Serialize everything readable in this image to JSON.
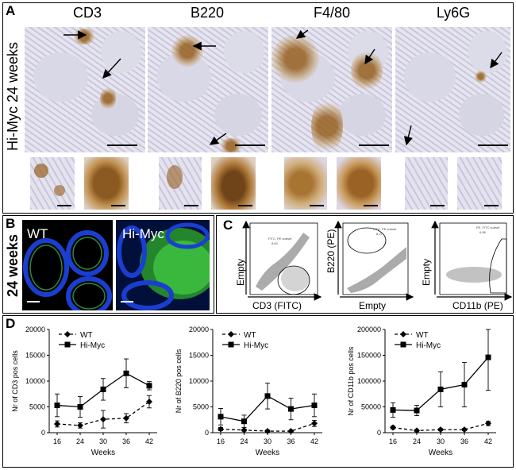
{
  "panel_a": {
    "letter": "A",
    "row_label": "Hi-Myc 24 weeks",
    "stains": [
      "CD3",
      "B220",
      "F4/80",
      "Ly6G"
    ]
  },
  "panel_b": {
    "letter": "B",
    "row_label": "24 weeks",
    "wt_label": "WT",
    "himyc_label": "Hi-Myc"
  },
  "panel_c": {
    "letter": "C",
    "plot1": {
      "ylabel": "Empty",
      "xlabel": "CD3 (FITC)",
      "gate": "FITC, PE subset",
      "gate_value": "8,64"
    },
    "plot2": {
      "ylabel": "B220 (PE)",
      "xlabel": "Empty",
      "gate": "FITC, PE subset",
      "gate_value": "8,27"
    },
    "plot3": {
      "ylabel": "Empty",
      "xlabel": "CD11b (PE)",
      "gate": "PE, FITC subset",
      "gate_value": "6,95"
    }
  },
  "panel_d": {
    "letter": "D",
    "xlabel": "Weeks"
  },
  "colors": {
    "wt": "#000000",
    "himyc": "#000000",
    "brown": "#9a6a2a",
    "dapi": "#1a3fd0",
    "gfp": "#3fd13f"
  },
  "chart_data": [
    {
      "type": "line",
      "ylabel": "Nr of CD3 pos cells",
      "xlabel": "Weeks",
      "x": [
        16,
        24,
        30,
        36,
        42
      ],
      "ylim": [
        0,
        20000
      ],
      "yticks": [
        0,
        5000,
        10000,
        15000,
        20000
      ],
      "series": [
        {
          "name": "WT",
          "values": [
            1700,
            1400,
            2600,
            2800,
            6000
          ],
          "err": [
            600,
            500,
            1700,
            900,
            1200
          ],
          "style": "dashed-diamond"
        },
        {
          "name": "Hi-Myc",
          "values": [
            5300,
            5000,
            8400,
            11500,
            9100
          ],
          "err": [
            2200,
            2000,
            2100,
            2800,
            800
          ],
          "style": "solid-square"
        }
      ]
    },
    {
      "type": "line",
      "ylabel": "Nr of B220 pos cells",
      "xlabel": "Weeks",
      "x": [
        16,
        24,
        30,
        36,
        42
      ],
      "ylim": [
        0,
        20000
      ],
      "yticks": [
        0,
        5000,
        10000,
        15000,
        20000
      ],
      "series": [
        {
          "name": "WT",
          "values": [
            700,
            500,
            300,
            300,
            1800
          ],
          "err": [
            300,
            200,
            200,
            200,
            600
          ],
          "style": "dashed-diamond"
        },
        {
          "name": "Hi-Myc",
          "values": [
            3100,
            2200,
            7100,
            4600,
            5300
          ],
          "err": [
            1600,
            1200,
            2500,
            2100,
            2200
          ],
          "style": "solid-square"
        }
      ]
    },
    {
      "type": "line",
      "ylabel": "Nr of CD11b pos cells",
      "xlabel": "Weeks",
      "x": [
        16,
        24,
        30,
        36,
        42
      ],
      "ylim": [
        0,
        200000
      ],
      "yticks": [
        0,
        50000,
        100000,
        150000,
        200000
      ],
      "series": [
        {
          "name": "WT",
          "values": [
            10000,
            4000,
            6000,
            6000,
            18000
          ],
          "err": [
            3000,
            2000,
            2000,
            2000,
            4000
          ],
          "style": "dashed-diamond"
        },
        {
          "name": "Hi-Myc",
          "values": [
            44000,
            43000,
            84000,
            93000,
            146000
          ],
          "err": [
            14000,
            10000,
            34000,
            43000,
            64000
          ],
          "style": "solid-square"
        }
      ]
    }
  ]
}
